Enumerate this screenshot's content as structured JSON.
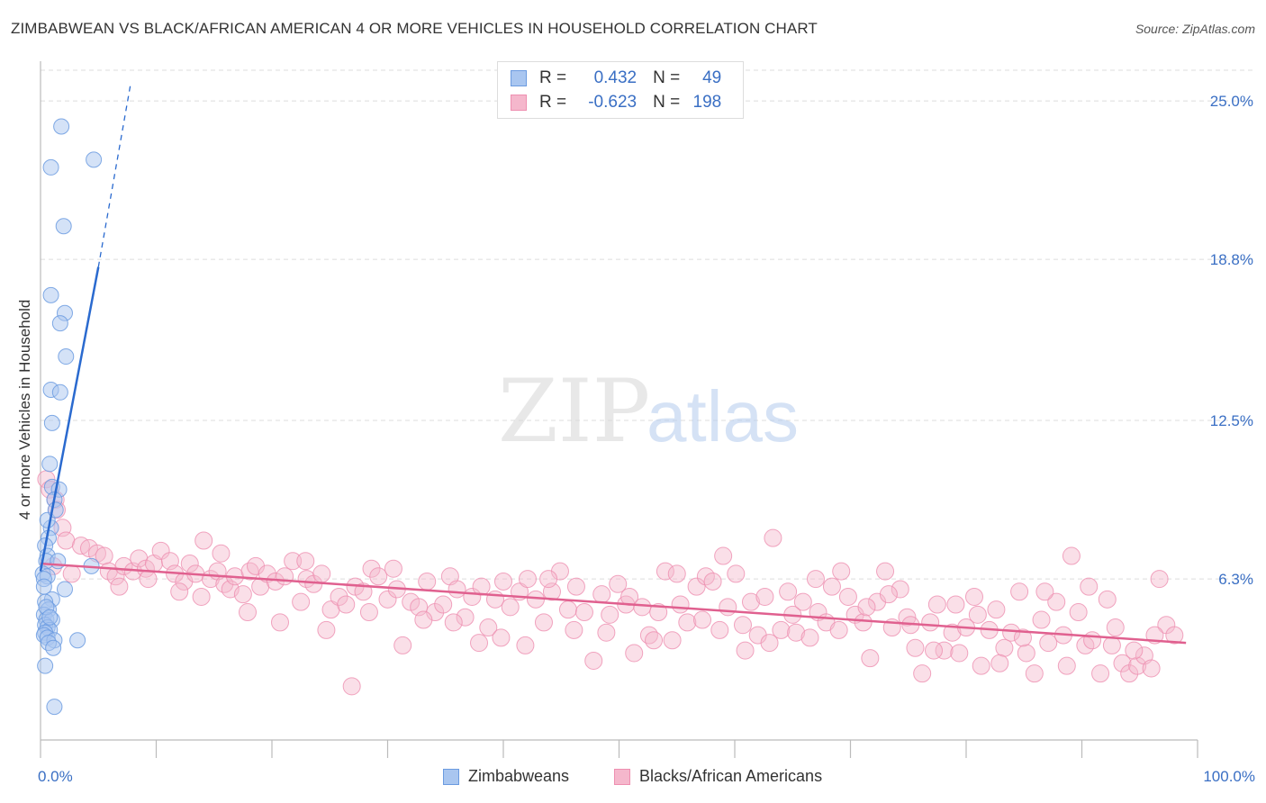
{
  "title": "ZIMBABWEAN VS BLACK/AFRICAN AMERICAN 4 OR MORE VEHICLES IN HOUSEHOLD CORRELATION CHART",
  "source": "Source: ZipAtlas.com",
  "watermark": {
    "zip": "ZIP",
    "atlas": "atlas"
  },
  "stats": {
    "zim": {
      "r_label": "R =",
      "r_value": "0.432",
      "n_label": "N =",
      "n_value": "49"
    },
    "baa": {
      "r_label": "R =",
      "r_value": "-0.623",
      "n_label": "N =",
      "n_value": "198"
    }
  },
  "colors": {
    "zim": "#6b9be0",
    "zim_fill": "#a9c6f0",
    "zim_line": "#2a6acf",
    "baa": "#ee8fb0",
    "baa_fill": "#f5b7cc",
    "baa_line": "#e0608f",
    "axis_text": "#3a6fc4"
  },
  "chart_data": {
    "type": "scatter",
    "title": "ZIMBABWEAN VS BLACK/AFRICAN AMERICAN 4 OR MORE VEHICLES IN HOUSEHOLD CORRELATION CHART",
    "xlabel": "",
    "ylabel": "4 or more Vehicles in Household",
    "xlim": [
      0,
      100
    ],
    "ylim": [
      0,
      26.2
    ],
    "x_tick_labels": [
      "0.0%",
      "100.0%"
    ],
    "y_ticks": [
      6.3,
      12.5,
      18.8,
      25.0
    ],
    "y_tick_labels": [
      "6.3%",
      "12.5%",
      "18.8%",
      "25.0%"
    ],
    "grid": true,
    "legend_position": "bottom",
    "series": [
      {
        "name": "Zimbabweans",
        "trend": {
          "x": [
            0.0,
            5.0
          ],
          "y": [
            6.6,
            18.5
          ],
          "dashed_to": [
            7.8,
            25.7
          ]
        },
        "points": [
          [
            1.8,
            24.0
          ],
          [
            4.6,
            22.7
          ],
          [
            0.9,
            22.4
          ],
          [
            2.0,
            20.1
          ],
          [
            0.9,
            17.4
          ],
          [
            2.1,
            16.7
          ],
          [
            1.7,
            16.3
          ],
          [
            2.2,
            15.0
          ],
          [
            0.9,
            13.7
          ],
          [
            1.7,
            13.6
          ],
          [
            1.0,
            12.4
          ],
          [
            0.8,
            10.8
          ],
          [
            1.0,
            9.9
          ],
          [
            1.6,
            9.8
          ],
          [
            1.2,
            9.4
          ],
          [
            0.9,
            8.3
          ],
          [
            0.7,
            7.9
          ],
          [
            0.4,
            7.6
          ],
          [
            0.6,
            7.2
          ],
          [
            0.5,
            7.0
          ],
          [
            4.4,
            6.8
          ],
          [
            0.2,
            6.5
          ],
          [
            0.6,
            6.4
          ],
          [
            0.3,
            6.3
          ],
          [
            2.1,
            5.9
          ],
          [
            1.0,
            5.5
          ],
          [
            0.4,
            5.4
          ],
          [
            0.7,
            5.1
          ],
          [
            0.3,
            4.9
          ],
          [
            0.5,
            4.7
          ],
          [
            1.0,
            4.7
          ],
          [
            0.4,
            4.5
          ],
          [
            0.6,
            4.4
          ],
          [
            0.8,
            4.3
          ],
          [
            0.4,
            4.2
          ],
          [
            0.3,
            4.1
          ],
          [
            0.6,
            4.0
          ],
          [
            1.2,
            3.9
          ],
          [
            3.2,
            3.9
          ],
          [
            0.7,
            3.8
          ],
          [
            1.1,
            3.6
          ],
          [
            0.4,
            2.9
          ],
          [
            1.2,
            1.3
          ],
          [
            0.5,
            5.2
          ],
          [
            0.8,
            4.8
          ],
          [
            0.3,
            6.0
          ],
          [
            1.5,
            7.0
          ],
          [
            0.6,
            8.6
          ],
          [
            1.3,
            9.0
          ]
        ]
      },
      {
        "name": "Blacks/African Americans",
        "trend": {
          "x": [
            0.0,
            99.0
          ],
          "y": [
            6.9,
            3.8
          ]
        },
        "points": [
          [
            0.5,
            10.2
          ],
          [
            0.8,
            9.8
          ],
          [
            1.3,
            9.4
          ],
          [
            1.4,
            9.0
          ],
          [
            1.9,
            8.3
          ],
          [
            2.2,
            7.8
          ],
          [
            3.5,
            7.6
          ],
          [
            4.2,
            7.5
          ],
          [
            4.9,
            7.3
          ],
          [
            5.5,
            7.2
          ],
          [
            5.9,
            6.6
          ],
          [
            6.5,
            6.4
          ],
          [
            7.2,
            6.8
          ],
          [
            8.0,
            6.6
          ],
          [
            8.5,
            7.1
          ],
          [
            9.1,
            6.7
          ],
          [
            9.8,
            6.9
          ],
          [
            10.4,
            7.4
          ],
          [
            11.2,
            7.0
          ],
          [
            11.6,
            6.5
          ],
          [
            12.4,
            6.2
          ],
          [
            12.9,
            6.9
          ],
          [
            13.4,
            6.5
          ],
          [
            14.1,
            7.8
          ],
          [
            14.7,
            6.3
          ],
          [
            15.3,
            6.6
          ],
          [
            15.9,
            6.1
          ],
          [
            16.4,
            5.9
          ],
          [
            16.8,
            6.4
          ],
          [
            17.5,
            5.7
          ],
          [
            18.1,
            6.6
          ],
          [
            18.6,
            6.8
          ],
          [
            19.0,
            6.0
          ],
          [
            19.6,
            6.5
          ],
          [
            20.3,
            6.2
          ],
          [
            21.1,
            6.4
          ],
          [
            21.8,
            7.0
          ],
          [
            22.5,
            5.4
          ],
          [
            23.0,
            6.3
          ],
          [
            23.6,
            6.1
          ],
          [
            24.3,
            6.5
          ],
          [
            25.1,
            5.1
          ],
          [
            25.8,
            5.6
          ],
          [
            26.4,
            5.3
          ],
          [
            27.2,
            6.0
          ],
          [
            27.9,
            5.8
          ],
          [
            28.6,
            6.7
          ],
          [
            29.2,
            6.4
          ],
          [
            30.0,
            5.5
          ],
          [
            30.8,
            5.9
          ],
          [
            31.3,
            3.7
          ],
          [
            32.0,
            5.4
          ],
          [
            32.7,
            5.2
          ],
          [
            33.4,
            6.2
          ],
          [
            34.1,
            5.0
          ],
          [
            34.8,
            5.3
          ],
          [
            35.4,
            6.4
          ],
          [
            36.0,
            5.9
          ],
          [
            36.7,
            4.8
          ],
          [
            37.3,
            5.6
          ],
          [
            38.1,
            6.0
          ],
          [
            38.7,
            4.4
          ],
          [
            39.3,
            5.5
          ],
          [
            40.0,
            6.2
          ],
          [
            40.6,
            5.2
          ],
          [
            41.4,
            5.8
          ],
          [
            42.1,
            6.3
          ],
          [
            42.8,
            5.5
          ],
          [
            43.5,
            4.6
          ],
          [
            44.2,
            5.8
          ],
          [
            44.9,
            6.6
          ],
          [
            45.6,
            5.1
          ],
          [
            46.3,
            6.0
          ],
          [
            47.0,
            5.0
          ],
          [
            47.8,
            3.1
          ],
          [
            48.5,
            5.7
          ],
          [
            49.2,
            4.9
          ],
          [
            49.9,
            6.1
          ],
          [
            50.6,
            5.3
          ],
          [
            51.3,
            3.4
          ],
          [
            52.0,
            5.2
          ],
          [
            52.6,
            4.1
          ],
          [
            53.4,
            5.0
          ],
          [
            54.0,
            6.6
          ],
          [
            54.6,
            3.9
          ],
          [
            55.3,
            5.3
          ],
          [
            55.9,
            4.6
          ],
          [
            56.7,
            6.0
          ],
          [
            57.5,
            6.4
          ],
          [
            58.1,
            6.2
          ],
          [
            58.7,
            4.3
          ],
          [
            59.4,
            5.2
          ],
          [
            60.1,
            6.5
          ],
          [
            60.7,
            4.5
          ],
          [
            61.4,
            5.4
          ],
          [
            62.0,
            4.1
          ],
          [
            62.6,
            5.6
          ],
          [
            63.3,
            7.9
          ],
          [
            64.0,
            4.3
          ],
          [
            64.6,
            5.8
          ],
          [
            65.3,
            4.2
          ],
          [
            65.9,
            5.4
          ],
          [
            66.5,
            4.0
          ],
          [
            67.2,
            5.0
          ],
          [
            67.9,
            4.6
          ],
          [
            68.4,
            6.0
          ],
          [
            69.0,
            4.3
          ],
          [
            69.8,
            5.6
          ],
          [
            70.4,
            4.9
          ],
          [
            71.1,
            4.6
          ],
          [
            71.7,
            3.2
          ],
          [
            72.3,
            5.4
          ],
          [
            73.0,
            6.6
          ],
          [
            73.6,
            4.4
          ],
          [
            74.3,
            5.9
          ],
          [
            74.9,
            4.8
          ],
          [
            75.6,
            3.6
          ],
          [
            76.2,
            2.6
          ],
          [
            76.9,
            4.6
          ],
          [
            77.5,
            5.3
          ],
          [
            78.1,
            3.5
          ],
          [
            78.8,
            4.2
          ],
          [
            79.4,
            3.4
          ],
          [
            80.0,
            4.4
          ],
          [
            80.7,
            5.6
          ],
          [
            81.3,
            2.9
          ],
          [
            82.0,
            4.3
          ],
          [
            82.6,
            5.1
          ],
          [
            83.3,
            3.6
          ],
          [
            83.9,
            4.2
          ],
          [
            84.6,
            5.8
          ],
          [
            85.2,
            3.4
          ],
          [
            85.9,
            2.6
          ],
          [
            86.5,
            4.7
          ],
          [
            87.1,
            3.8
          ],
          [
            87.8,
            5.4
          ],
          [
            88.4,
            4.1
          ],
          [
            89.1,
            7.2
          ],
          [
            89.7,
            5.0
          ],
          [
            90.3,
            3.7
          ],
          [
            90.9,
            3.9
          ],
          [
            91.6,
            2.6
          ],
          [
            92.2,
            5.5
          ],
          [
            92.9,
            4.4
          ],
          [
            93.5,
            3.0
          ],
          [
            94.1,
            2.6
          ],
          [
            94.8,
            2.9
          ],
          [
            95.4,
            3.3
          ],
          [
            96.0,
            2.8
          ],
          [
            96.7,
            6.3
          ],
          [
            97.3,
            4.5
          ],
          [
            98.0,
            4.1
          ],
          [
            1.1,
            6.8
          ],
          [
            2.7,
            6.5
          ],
          [
            6.8,
            6.0
          ],
          [
            9.3,
            6.3
          ],
          [
            12.0,
            5.8
          ],
          [
            13.9,
            5.6
          ],
          [
            15.6,
            7.3
          ],
          [
            17.9,
            5.0
          ],
          [
            20.7,
            4.6
          ],
          [
            22.9,
            7.0
          ],
          [
            24.7,
            4.3
          ],
          [
            26.9,
            2.1
          ],
          [
            28.4,
            5.0
          ],
          [
            30.5,
            6.7
          ],
          [
            33.1,
            4.7
          ],
          [
            35.7,
            4.6
          ],
          [
            37.9,
            3.8
          ],
          [
            39.8,
            4.0
          ],
          [
            41.9,
            3.7
          ],
          [
            43.9,
            6.3
          ],
          [
            46.1,
            4.3
          ],
          [
            48.9,
            4.2
          ],
          [
            50.9,
            5.6
          ],
          [
            53.0,
            3.9
          ],
          [
            55.0,
            6.5
          ],
          [
            57.2,
            4.7
          ],
          [
            59.0,
            7.2
          ],
          [
            60.9,
            3.5
          ],
          [
            63.0,
            3.8
          ],
          [
            65.0,
            4.9
          ],
          [
            67.0,
            6.3
          ],
          [
            69.2,
            6.6
          ],
          [
            71.4,
            5.2
          ],
          [
            73.3,
            5.7
          ],
          [
            75.2,
            4.5
          ],
          [
            77.2,
            3.5
          ],
          [
            79.1,
            5.3
          ],
          [
            81.0,
            4.9
          ],
          [
            82.9,
            3.0
          ],
          [
            84.9,
            4.0
          ],
          [
            86.8,
            5.8
          ],
          [
            88.7,
            2.9
          ],
          [
            90.6,
            6.0
          ],
          [
            92.6,
            3.7
          ],
          [
            94.5,
            3.5
          ],
          [
            96.3,
            4.1
          ]
        ]
      }
    ]
  },
  "legend": {
    "zim": "Zimbabweans",
    "baa": "Blacks/African Americans"
  }
}
